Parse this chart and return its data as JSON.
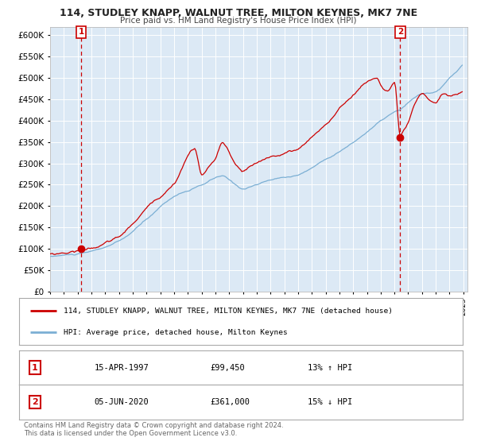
{
  "title": "114, STUDLEY KNAPP, WALNUT TREE, MILTON KEYNES, MK7 7NE",
  "subtitle": "Price paid vs. HM Land Registry's House Price Index (HPI)",
  "background_color": "#ffffff",
  "plot_bg_color": "#dce9f5",
  "grid_color": "#ffffff",
  "red_color": "#cc0000",
  "blue_color": "#7bafd4",
  "legend_line1": "114, STUDLEY KNAPP, WALNUT TREE, MILTON KEYNES, MK7 7NE (detached house)",
  "legend_line2": "HPI: Average price, detached house, Milton Keynes",
  "annotation1_date": "15-APR-1997",
  "annotation1_price": "£99,450",
  "annotation1_hpi": "13% ↑ HPI",
  "annotation2_date": "05-JUN-2020",
  "annotation2_price": "£361,000",
  "annotation2_hpi": "15% ↓ HPI",
  "footer": "Contains HM Land Registry data © Crown copyright and database right 2024.\nThis data is licensed under the Open Government Licence v3.0.",
  "ylim": [
    0,
    620000
  ],
  "yticks": [
    0,
    50000,
    100000,
    150000,
    200000,
    250000,
    300000,
    350000,
    400000,
    450000,
    500000,
    550000,
    600000
  ]
}
